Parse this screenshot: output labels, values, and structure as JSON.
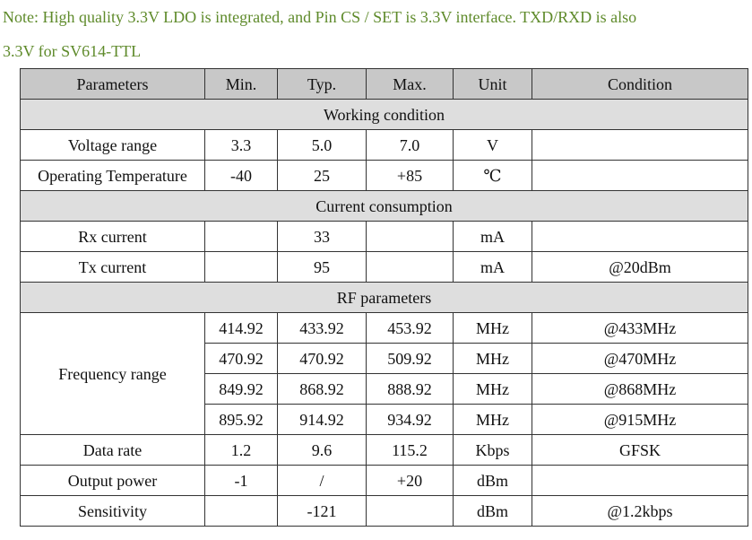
{
  "note": {
    "line1": "Note: High quality 3.3V LDO is integrated, and Pin CS / SET is 3.3V interface. TXD/RXD is also",
    "line2": "3.3V for SV614-TTL"
  },
  "table": {
    "headers": [
      "Parameters",
      "Min.",
      "Typ.",
      "Max.",
      "Unit",
      "Condition"
    ],
    "sections": [
      {
        "title": "Working condition",
        "rows": [
          [
            "Voltage range",
            "3.3",
            "5.0",
            "7.0",
            "V",
            ""
          ],
          [
            "Operating Temperature",
            "-40",
            "25",
            "+85",
            "℃",
            ""
          ]
        ]
      },
      {
        "title": "Current consumption",
        "rows": [
          [
            "Rx current",
            "",
            "33",
            "",
            "mA",
            ""
          ],
          [
            "Tx current",
            "",
            "95",
            "",
            "mA",
            "@20dBm"
          ]
        ]
      },
      {
        "title": "RF parameters",
        "frequency": {
          "label": "Frequency range",
          "rows": [
            [
              "414.92",
              "433.92",
              "453.92",
              "MHz",
              "@433MHz"
            ],
            [
              "470.92",
              "470.92",
              "509.92",
              "MHz",
              "@470MHz"
            ],
            [
              "849.92",
              "868.92",
              "888.92",
              "MHz",
              "@868MHz"
            ],
            [
              "895.92",
              "914.92",
              "934.92",
              "MHz",
              "@915MHz"
            ]
          ]
        },
        "rows": [
          [
            "Data rate",
            "1.2",
            "9.6",
            "115.2",
            "Kbps",
            "GFSK"
          ],
          [
            "Output power",
            "-1",
            "/",
            "+20",
            "dBm",
            ""
          ],
          [
            "Sensitivity",
            "",
            "-121",
            "",
            "dBm",
            "@1.2kbps"
          ]
        ]
      }
    ]
  }
}
